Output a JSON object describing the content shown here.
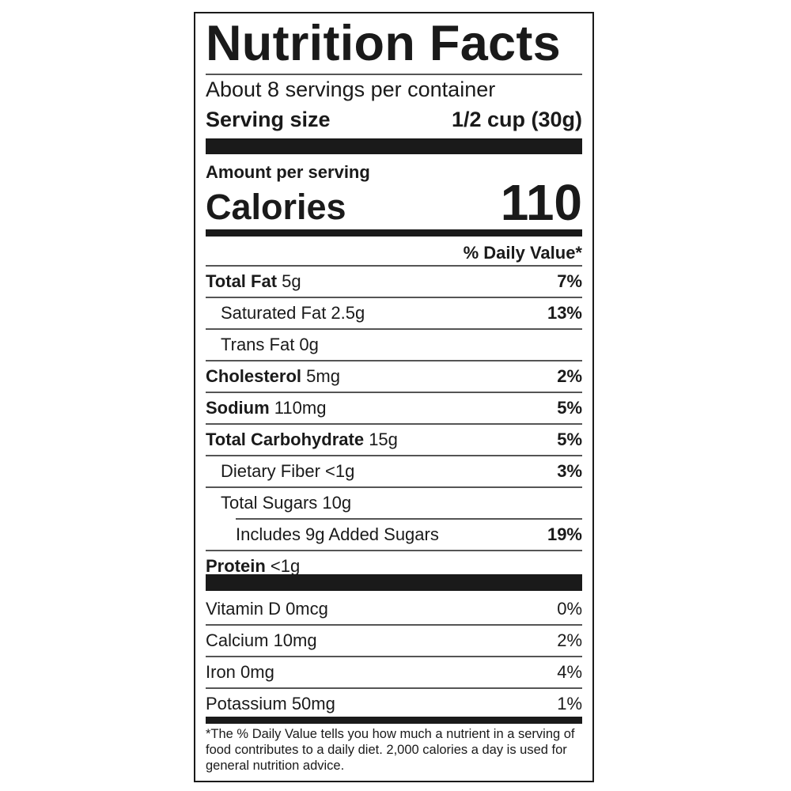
{
  "title": "Nutrition Facts",
  "servings_per_container": "About 8 servings per container",
  "serving_size": {
    "label": "Serving size",
    "value": "1/2 cup (30g)"
  },
  "amount_per_serving": "Amount per serving",
  "calories": {
    "label": "Calories",
    "value": "110"
  },
  "daily_value_header": "% Daily Value*",
  "nutrients": [
    {
      "name": "Total Fat",
      "amount": "5g",
      "dv": "7%"
    },
    {
      "name": "Saturated Fat 2.5g",
      "amount": "",
      "dv": "13%"
    },
    {
      "name": "Trans Fat 0g",
      "amount": "",
      "dv": ""
    },
    {
      "name": "Cholesterol",
      "amount": "5mg",
      "dv": "2%"
    },
    {
      "name": "Sodium",
      "amount": "110mg",
      "dv": "5%"
    },
    {
      "name": "Total Carbohydrate",
      "amount": "15g",
      "dv": "5%"
    },
    {
      "name": "Dietary Fiber <1g",
      "amount": "",
      "dv": "3%"
    },
    {
      "name": "Total Sugars 10g",
      "amount": "",
      "dv": ""
    },
    {
      "name": "Includes 9g Added Sugars",
      "amount": "",
      "dv": "19%"
    },
    {
      "name": "Protein",
      "amount": "<1g",
      "dv": ""
    }
  ],
  "vitamins": [
    {
      "name": "Vitamin D 0mcg",
      "dv": "0%"
    },
    {
      "name": "Calcium 10mg",
      "dv": "2%"
    },
    {
      "name": "Iron 0mg",
      "dv": "4%"
    },
    {
      "name": "Potassium 50mg",
      "dv": "1%"
    }
  ],
  "footnote": "*The % Daily Value tells you how much a nutrient in a serving of food contributes to a daily diet. 2,000 calories a day is used for general nutrition advice."
}
